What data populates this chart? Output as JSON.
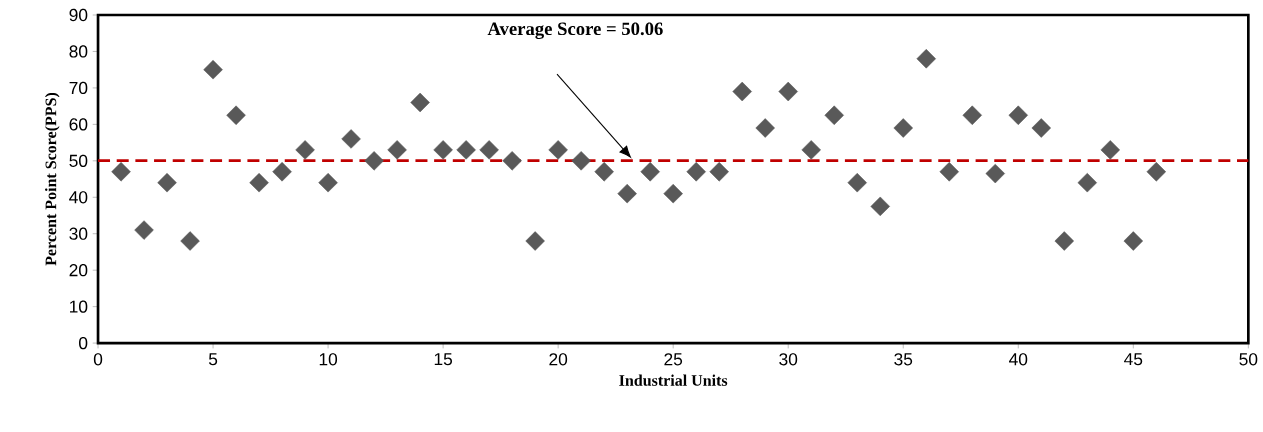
{
  "chart_data": {
    "type": "scatter",
    "xlabel": "Industrial Units",
    "ylabel": "Percent Point Score(PPS)",
    "x": [
      1,
      2,
      3,
      4,
      5,
      6,
      7,
      8,
      9,
      10,
      11,
      12,
      13,
      14,
      15,
      16,
      17,
      18,
      19,
      20,
      21,
      22,
      23,
      24,
      25,
      26,
      27,
      28,
      29,
      30,
      31,
      32,
      33,
      34,
      35,
      36,
      37,
      38,
      39,
      40,
      41,
      42,
      43,
      44,
      45,
      46
    ],
    "values": [
      47,
      31,
      44,
      28,
      75,
      62.5,
      44,
      47,
      53,
      44,
      56,
      50,
      53,
      66,
      53,
      53,
      53,
      50,
      28,
      53,
      50,
      47,
      41,
      47,
      41,
      47,
      47,
      69,
      59,
      69,
      53,
      62.5,
      44,
      37.5,
      59,
      78,
      47,
      62.5,
      46.5,
      62.5,
      59,
      28,
      44,
      53,
      28,
      47
    ],
    "color": "#595959",
    "marker": "diamond",
    "xlim": [
      0,
      50
    ],
    "xticks": [
      0,
      5,
      10,
      15,
      20,
      25,
      30,
      35,
      40,
      45,
      50
    ],
    "ylim": [
      0,
      90
    ],
    "yticks": [
      0,
      10,
      20,
      30,
      40,
      50,
      60,
      70,
      80,
      90
    ],
    "ref_lines": [
      {
        "axis": "y",
        "value": 50.06,
        "color": "#c00000",
        "line_style": "dashed"
      }
    ],
    "annotations": [
      "Average Score = 50.06"
    ],
    "grid": false
  }
}
